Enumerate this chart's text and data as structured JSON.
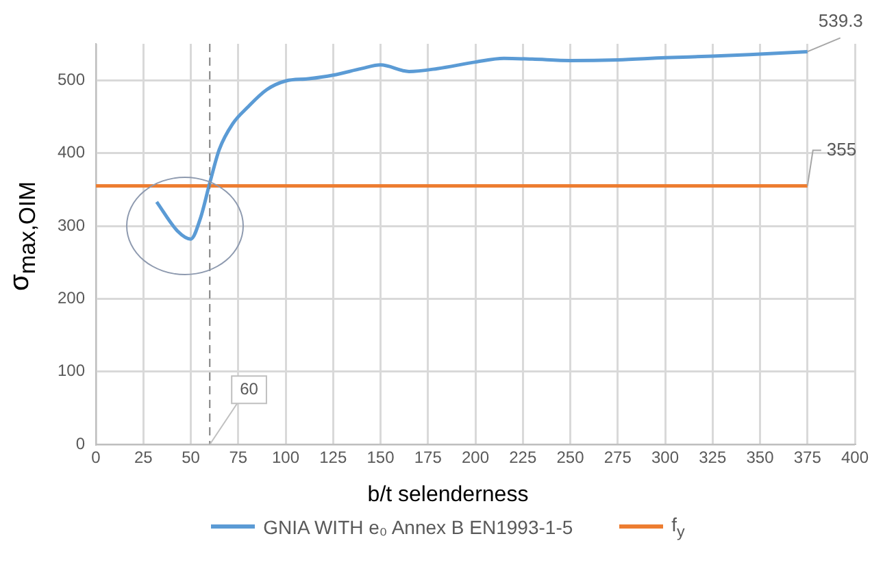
{
  "chart_data": {
    "type": "line",
    "xlabel": "b/t selenderness",
    "ylabel": "σ$_{max,OIM}$",
    "series": [
      {
        "name": "GNIA WITH e₀ Annex B EN1993-1-5",
        "color": "#5b9bd5",
        "x": [
          32,
          43,
          50,
          55,
          60,
          65,
          72,
          80,
          90,
          100,
          112,
          125,
          140,
          150,
          165,
          180,
          200,
          215,
          230,
          250,
          275,
          300,
          325,
          350,
          375
        ],
        "values": [
          333,
          293,
          282,
          310,
          359,
          405,
          440,
          463,
          487,
          499,
          502,
          507,
          516,
          521,
          512,
          516,
          525,
          530,
          529,
          527,
          528,
          531,
          533,
          536,
          539.3
        ]
      },
      {
        "name": "f$_{y}$",
        "color": "#ed7d31",
        "x": [
          0,
          375
        ],
        "values": [
          355,
          355
        ]
      }
    ],
    "xlim": [
      0,
      400
    ],
    "xticks": [
      0,
      25,
      50,
      75,
      100,
      125,
      150,
      175,
      200,
      225,
      250,
      275,
      300,
      325,
      350,
      375,
      400
    ],
    "ylim": [
      0,
      550
    ],
    "yticks": [
      0,
      100,
      200,
      300,
      400,
      500
    ],
    "grid": true,
    "legend": "bottom",
    "marker": "none",
    "line_style": "solid",
    "ref_lines": [
      {
        "axis": "x",
        "value": 60,
        "label": "60",
        "line_style": "dashed",
        "color": "#808080"
      }
    ],
    "annotations": [
      {
        "text": "539.3",
        "x": 375,
        "y": 539.3
      },
      {
        "text": "355",
        "x": 375,
        "y": 355
      }
    ]
  }
}
